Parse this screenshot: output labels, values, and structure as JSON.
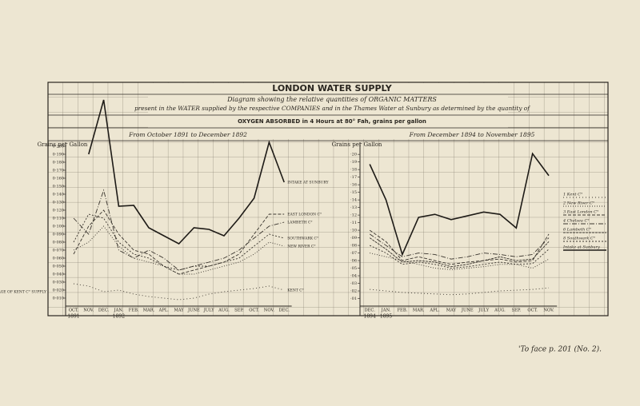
{
  "header": {
    "title": "LONDON WATER SUPPLY",
    "line1": "Diagram showing the relative quantities of ORGANIC MATTERS",
    "line2": "present in the WATER supplied by the respective COMPANIES and in the Thames Water at Sunbury as determined by the quantity of",
    "line3": "OXYGEN ABSORBED in 4 Hours at 80° Fah, grains per gallon",
    "footer": "'To face p. 201 (No. 2)."
  },
  "chart_data": [
    {
      "type": "line",
      "title": "From October 1891 to December 1892",
      "y_label": "Grains per Gallon",
      "categories": [
        "OCT.",
        "NOV.",
        "DEC.",
        "JAN.",
        "FEB.",
        "MAR.",
        "APL.",
        "MAY",
        "JUNE",
        "JULY",
        "AUG.",
        "SEP.",
        "OCT.",
        "NOV.",
        "DEC."
      ],
      "x_groups": [
        "1891",
        "1892"
      ],
      "ylim": [
        0,
        0.28
      ],
      "yticks": [
        {
          "value": 0.01,
          "label": "0·010"
        },
        {
          "value": 0.02,
          "label": "0·020"
        },
        {
          "value": 0.03,
          "label": "0·030"
        },
        {
          "value": 0.04,
          "label": "0·040"
        },
        {
          "value": 0.05,
          "label": "0·050"
        },
        {
          "value": 0.06,
          "label": "0·060"
        },
        {
          "value": 0.07,
          "label": "0·070"
        },
        {
          "value": 0.08,
          "label": "0·080"
        },
        {
          "value": 0.09,
          "label": "0·090"
        },
        {
          "value": 0.1,
          "label": "0·100"
        },
        {
          "value": 0.11,
          "label": "0·110"
        },
        {
          "value": 0.12,
          "label": "0·120"
        },
        {
          "value": 0.13,
          "label": "0·130"
        },
        {
          "value": 0.14,
          "label": "0·140"
        },
        {
          "value": 0.15,
          "label": "0·150"
        },
        {
          "value": 0.16,
          "label": "0·160"
        },
        {
          "value": 0.17,
          "label": "0·170"
        },
        {
          "value": 0.18,
          "label": "0·180"
        },
        {
          "value": 0.19,
          "label": "0·190"
        },
        {
          "value": 0.2,
          "label": "0·200"
        }
      ],
      "annotations": [
        "AVERAGE OF KENT C° SUPPLY"
      ],
      "series": [
        {
          "name": "INTAKE AT SUNBURY",
          "color": "#1e1b17",
          "dash": "none",
          "width": 1.6,
          "values": [
            null,
            0.19,
            0.258,
            0.125,
            0.126,
            0.098,
            0.088,
            0.078,
            0.098,
            0.096,
            0.088,
            0.11,
            0.135,
            0.205,
            0.155
          ]
        },
        {
          "name": "EAST LONDON C°",
          "color": "#3a352e",
          "dash": "4 2",
          "width": 0.9,
          "values": [
            0.065,
            0.1,
            0.12,
            0.09,
            0.07,
            0.065,
            0.05,
            0.04,
            0.045,
            0.05,
            0.055,
            0.065,
            0.09,
            0.115,
            0.115
          ]
        },
        {
          "name": "LAMBETH C°",
          "color": "#3a352e",
          "dash": "6 2 1 2",
          "width": 0.9,
          "values": [
            0.11,
            0.09,
            0.145,
            0.07,
            0.06,
            0.07,
            0.06,
            0.045,
            0.05,
            0.055,
            0.06,
            0.07,
            0.085,
            0.1,
            0.105
          ]
        },
        {
          "name": "SOUTHWARK C°",
          "color": "#3a352e",
          "dash": "2 2",
          "width": 0.9,
          "values": [
            0.08,
            0.115,
            0.11,
            0.08,
            0.065,
            0.06,
            0.05,
            0.045,
            0.05,
            0.05,
            0.055,
            0.06,
            0.075,
            0.09,
            0.085
          ]
        },
        {
          "name": "NEW RIVER C°",
          "color": "#3a352e",
          "dash": "1 2",
          "width": 0.9,
          "values": [
            0.07,
            0.08,
            0.1,
            0.075,
            0.06,
            0.055,
            0.05,
            0.04,
            0.04,
            0.045,
            0.05,
            0.055,
            0.065,
            0.08,
            0.075
          ]
        },
        {
          "name": "KENT C°",
          "color": "#3a352e",
          "dash": "1 3",
          "width": 0.9,
          "values": [
            0.028,
            0.025,
            0.018,
            0.02,
            0.015,
            0.012,
            0.01,
            0.008,
            0.01,
            0.015,
            0.018,
            0.02,
            0.022,
            0.025,
            0.02
          ]
        }
      ]
    },
    {
      "type": "line",
      "title": "From December 1894 to November 1895",
      "y_label": "Grains per Gallon",
      "categories": [
        "DEC.",
        "JAN.",
        "FEB.",
        "MAR.",
        "APL.",
        "MAY",
        "JUNE",
        "JULY",
        "AUG.",
        "SEP.",
        "OCT.",
        "NOV."
      ],
      "x_groups": [
        "1894",
        "1895"
      ],
      "ylim": [
        0,
        0.295
      ],
      "yticks": [
        {
          "value": 0.01,
          "label": "·01"
        },
        {
          "value": 0.02,
          "label": "·02"
        },
        {
          "value": 0.03,
          "label": "·03"
        },
        {
          "value": 0.04,
          "label": "·04"
        },
        {
          "value": 0.05,
          "label": "·05"
        },
        {
          "value": 0.06,
          "label": "·06"
        },
        {
          "value": 0.07,
          "label": "·07"
        },
        {
          "value": 0.08,
          "label": "·08"
        },
        {
          "value": 0.09,
          "label": "·09"
        },
        {
          "value": 0.1,
          "label": "·10"
        },
        {
          "value": 0.11,
          "label": "·11"
        },
        {
          "value": 0.12,
          "label": "·12"
        },
        {
          "value": 0.13,
          "label": "·13"
        },
        {
          "value": 0.14,
          "label": "·14"
        },
        {
          "value": 0.15,
          "label": "·15"
        },
        {
          "value": 0.16,
          "label": "·16"
        },
        {
          "value": 0.17,
          "label": "·17"
        },
        {
          "value": 0.18,
          "label": "·18"
        },
        {
          "value": 0.19,
          "label": "·19"
        },
        {
          "value": 0.2,
          "label": "·20"
        }
      ],
      "series": [
        {
          "name": "1 Kent C°",
          "color": "#3a352e",
          "dash": "1 3",
          "width": 0.9,
          "values": [
            0.022,
            0.02,
            0.018,
            0.017,
            0.016,
            0.015,
            0.016,
            0.018,
            0.02,
            0.021,
            0.022,
            0.024
          ]
        },
        {
          "name": "2 New River C°",
          "color": "#3a352e",
          "dash": "1 2",
          "width": 0.9,
          "values": [
            0.07,
            0.065,
            0.06,
            0.055,
            0.05,
            0.048,
            0.05,
            0.052,
            0.055,
            0.055,
            0.05,
            0.062
          ]
        },
        {
          "name": "3 East London C°",
          "color": "#3a352e",
          "dash": "4 2",
          "width": 0.9,
          "values": [
            0.1,
            0.085,
            0.06,
            0.065,
            0.06,
            0.055,
            0.058,
            0.06,
            0.062,
            0.058,
            0.06,
            0.095
          ]
        },
        {
          "name": "4 Chelsea C°",
          "color": "#3a352e",
          "dash": "6 2 1 2",
          "width": 0.9,
          "values": [
            0.095,
            0.08,
            0.065,
            0.07,
            0.068,
            0.062,
            0.065,
            0.07,
            0.068,
            0.065,
            0.068,
            0.09
          ]
        },
        {
          "name": "6 Lambeth C°",
          "color": "#3a352e",
          "dash": "3 1",
          "width": 0.9,
          "values": [
            0.09,
            0.075,
            0.058,
            0.06,
            0.058,
            0.052,
            0.055,
            0.06,
            0.065,
            0.06,
            0.062,
            0.085
          ]
        },
        {
          "name": "8 Southwark C°",
          "color": "#3a352e",
          "dash": "2 2",
          "width": 0.9,
          "values": [
            0.08,
            0.07,
            0.055,
            0.058,
            0.055,
            0.05,
            0.052,
            0.055,
            0.058,
            0.055,
            0.056,
            0.075
          ]
        },
        {
          "name": "Intake at Sunbury",
          "color": "#1e1b17",
          "dash": "none",
          "width": 1.6,
          "values": [
            0.187,
            0.14,
            0.068,
            0.117,
            0.121,
            0.114,
            0.119,
            0.124,
            0.121,
            0.103,
            0.201,
            0.172
          ]
        }
      ]
    }
  ]
}
